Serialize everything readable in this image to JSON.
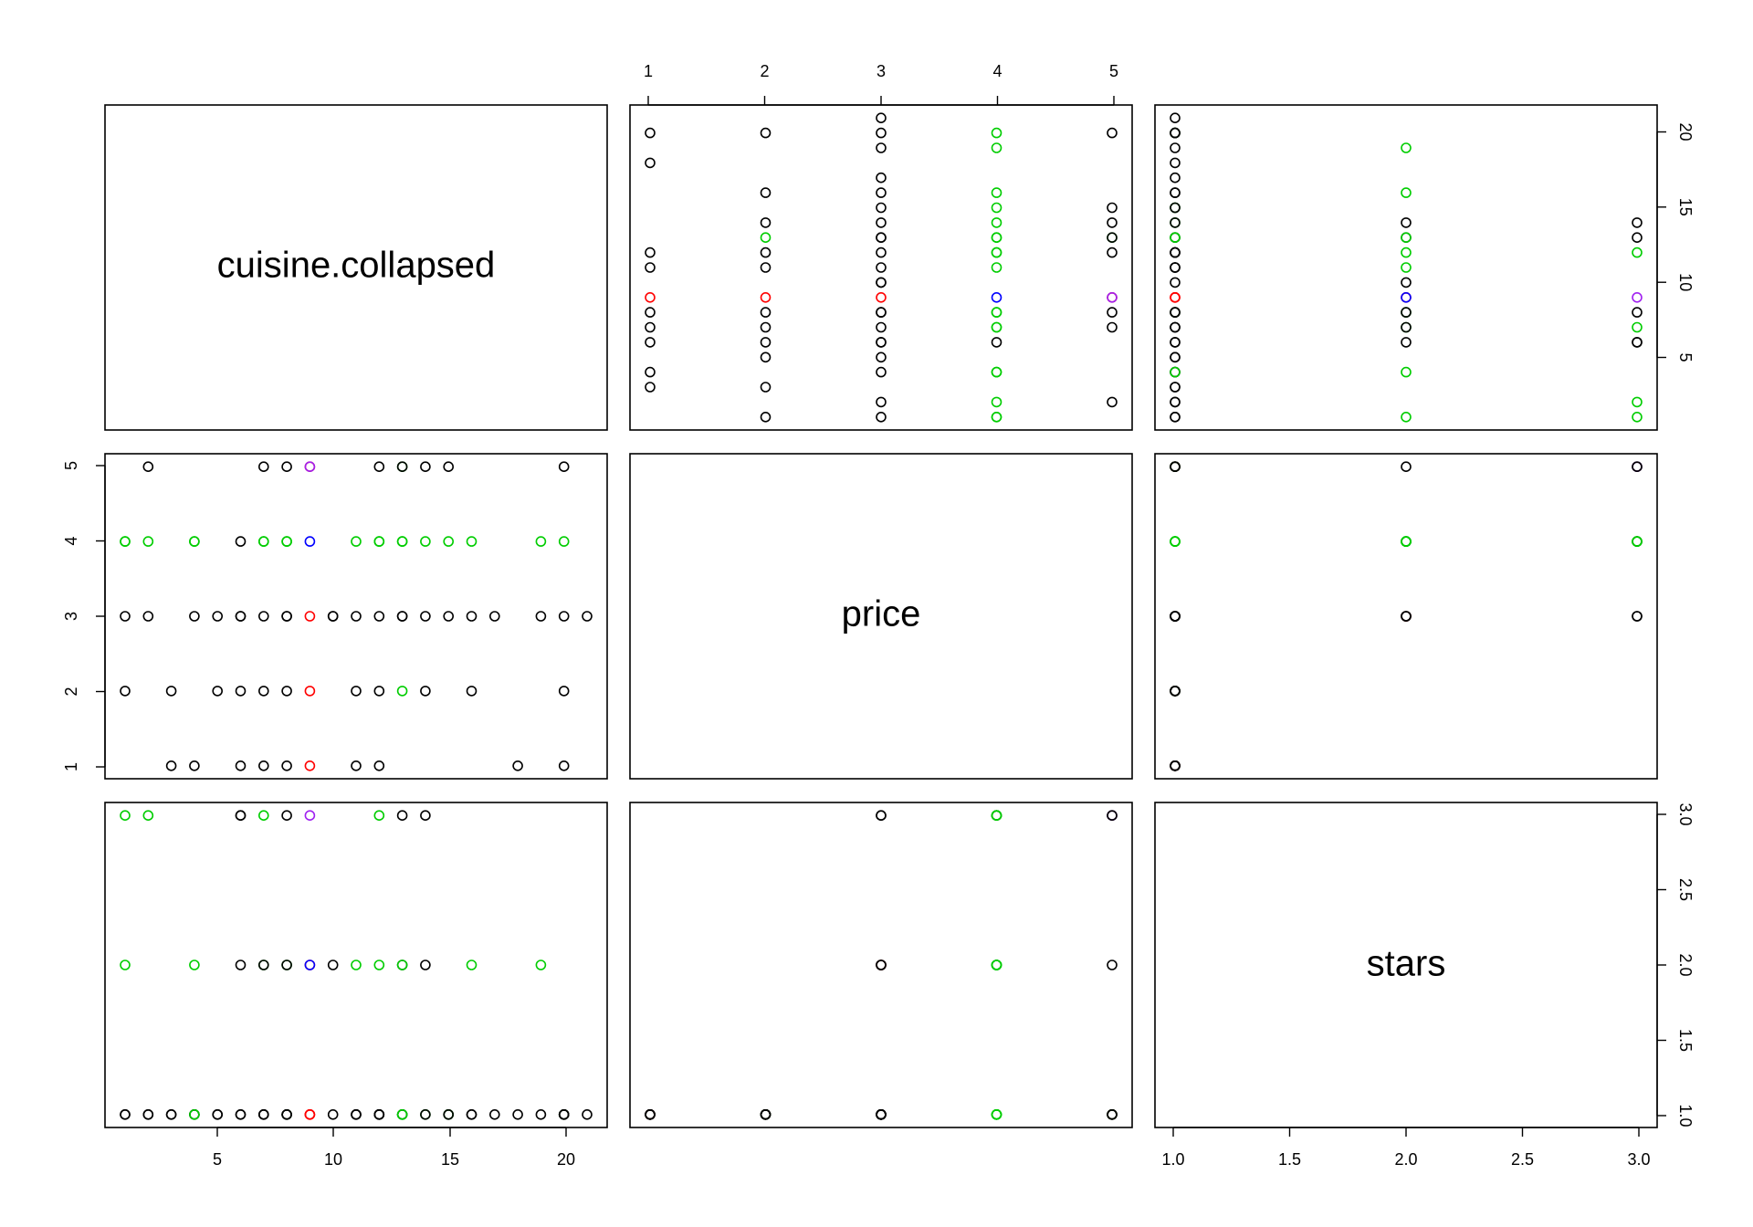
{
  "chart_data": {
    "type": "scatter",
    "layout": "pairs-matrix",
    "variables": [
      {
        "name": "cuisine.collapsed",
        "range": [
          1,
          21
        ],
        "ticks": [
          5,
          10,
          15,
          20
        ]
      },
      {
        "name": "price",
        "range": [
          1,
          5
        ],
        "ticks": [
          1,
          2,
          3,
          4,
          5
        ]
      },
      {
        "name": "stars",
        "range": [
          1,
          3
        ],
        "ticks": [
          1.0,
          1.5,
          2.0,
          2.5,
          3.0
        ]
      }
    ],
    "tick_labels": {
      "cuisine": [
        "5",
        "10",
        "15",
        "20"
      ],
      "price": [
        "1",
        "2",
        "3",
        "4",
        "5"
      ],
      "stars": [
        "1.0",
        "1.5",
        "2.0",
        "2.5",
        "3.0"
      ]
    },
    "colors": {
      "black": "#000000",
      "green": "#00cd00",
      "red": "#ff0000",
      "blue": "#0000ff",
      "purple": "#a020f0"
    },
    "points": [
      {
        "cuisine": 1,
        "price": 2,
        "stars": 1,
        "color": "black"
      },
      {
        "cuisine": 1,
        "price": 3,
        "stars": 1,
        "color": "black"
      },
      {
        "cuisine": 1,
        "price": 4,
        "stars": 2,
        "color": "green"
      },
      {
        "cuisine": 1,
        "price": 4,
        "stars": 3,
        "color": "green"
      },
      {
        "cuisine": 2,
        "price": 5,
        "stars": 1,
        "color": "black"
      },
      {
        "cuisine": 2,
        "price": 4,
        "stars": 3,
        "color": "green"
      },
      {
        "cuisine": 2,
        "price": 3,
        "stars": 1,
        "color": "black"
      },
      {
        "cuisine": 3,
        "price": 2,
        "stars": 1,
        "color": "black"
      },
      {
        "cuisine": 3,
        "price": 1,
        "stars": 1,
        "color": "black"
      },
      {
        "cuisine": 4,
        "price": 1,
        "stars": 1,
        "color": "black"
      },
      {
        "cuisine": 4,
        "price": 3,
        "stars": 1,
        "color": "black"
      },
      {
        "cuisine": 4,
        "price": 4,
        "stars": 1,
        "color": "green"
      },
      {
        "cuisine": 4,
        "price": 4,
        "stars": 2,
        "color": "green"
      },
      {
        "cuisine": 5,
        "price": 2,
        "stars": 1,
        "color": "black"
      },
      {
        "cuisine": 5,
        "price": 3,
        "stars": 1,
        "color": "black"
      },
      {
        "cuisine": 6,
        "price": 1,
        "stars": 1,
        "color": "black"
      },
      {
        "cuisine": 6,
        "price": 2,
        "stars": 1,
        "color": "black"
      },
      {
        "cuisine": 6,
        "price": 3,
        "stars": 2,
        "color": "black"
      },
      {
        "cuisine": 6,
        "price": 4,
        "stars": 3,
        "color": "black"
      },
      {
        "cuisine": 6,
        "price": 3,
        "stars": 3,
        "color": "black"
      },
      {
        "cuisine": 7,
        "price": 5,
        "stars": 1,
        "color": "black"
      },
      {
        "cuisine": 7,
        "price": 4,
        "stars": 3,
        "color": "green"
      },
      {
        "cuisine": 7,
        "price": 4,
        "stars": 2,
        "color": "green"
      },
      {
        "cuisine": 7,
        "price": 3,
        "stars": 2,
        "color": "black"
      },
      {
        "cuisine": 7,
        "price": 2,
        "stars": 1,
        "color": "black"
      },
      {
        "cuisine": 7,
        "price": 1,
        "stars": 1,
        "color": "black"
      },
      {
        "cuisine": 8,
        "price": 5,
        "stars": 3,
        "color": "black"
      },
      {
        "cuisine": 8,
        "price": 4,
        "stars": 1,
        "color": "green"
      },
      {
        "cuisine": 8,
        "price": 4,
        "stars": 2,
        "color": "green"
      },
      {
        "cuisine": 8,
        "price": 3,
        "stars": 1,
        "color": "black"
      },
      {
        "cuisine": 8,
        "price": 3,
        "stars": 2,
        "color": "black"
      },
      {
        "cuisine": 8,
        "price": 2,
        "stars": 1,
        "color": "black"
      },
      {
        "cuisine": 8,
        "price": 1,
        "stars": 1,
        "color": "black"
      },
      {
        "cuisine": 9,
        "price": 5,
        "stars": 1,
        "color": "red"
      },
      {
        "cuisine": 9,
        "price": 3,
        "stars": 2,
        "color": "red"
      },
      {
        "cuisine": 9,
        "price": 2,
        "stars": 1,
        "color": "red"
      },
      {
        "cuisine": 9,
        "price": 1,
        "stars": 1,
        "color": "red"
      },
      {
        "cuisine": 9,
        "price": 4,
        "stars": 2,
        "color": "blue"
      },
      {
        "cuisine": 9,
        "price": 5,
        "stars": 3,
        "color": "purple"
      },
      {
        "cuisine": 10,
        "price": 3,
        "stars": 1,
        "color": "black"
      },
      {
        "cuisine": 10,
        "price": 3,
        "stars": 2,
        "color": "black"
      },
      {
        "cuisine": 11,
        "price": 4,
        "stars": 2,
        "color": "green"
      },
      {
        "cuisine": 11,
        "price": 3,
        "stars": 1,
        "color": "black"
      },
      {
        "cuisine": 11,
        "price": 2,
        "stars": 1,
        "color": "black"
      },
      {
        "cuisine": 11,
        "price": 1,
        "stars": 1,
        "color": "black"
      },
      {
        "cuisine": 12,
        "price": 5,
        "stars": 1,
        "color": "black"
      },
      {
        "cuisine": 12,
        "price": 4,
        "stars": 2,
        "color": "green"
      },
      {
        "cuisine": 12,
        "price": 4,
        "stars": 3,
        "color": "green"
      },
      {
        "cuisine": 12,
        "price": 3,
        "stars": 1,
        "color": "black"
      },
      {
        "cuisine": 12,
        "price": 2,
        "stars": 1,
        "color": "black"
      },
      {
        "cuisine": 12,
        "price": 1,
        "stars": 1,
        "color": "black"
      },
      {
        "cuisine": 13,
        "price": 5,
        "stars": 1,
        "color": "green"
      },
      {
        "cuisine": 13,
        "price": 5,
        "stars": 2,
        "color": "black"
      },
      {
        "cuisine": 13,
        "price": 4,
        "stars": 1,
        "color": "green"
      },
      {
        "cuisine": 13,
        "price": 4,
        "stars": 2,
        "color": "green"
      },
      {
        "cuisine": 13,
        "price": 3,
        "stars": 1,
        "color": "black"
      },
      {
        "cuisine": 13,
        "price": 3,
        "stars": 3,
        "color": "black"
      },
      {
        "cuisine": 13,
        "price": 2,
        "stars": 1,
        "color": "green"
      },
      {
        "cuisine": 14,
        "price": 5,
        "stars": 3,
        "color": "black"
      },
      {
        "cuisine": 14,
        "price": 4,
        "stars": 1,
        "color": "green"
      },
      {
        "cuisine": 14,
        "price": 3,
        "stars": 2,
        "color": "black"
      },
      {
        "cuisine": 14,
        "price": 2,
        "stars": 1,
        "color": "black"
      },
      {
        "cuisine": 15,
        "price": 5,
        "stars": 1,
        "color": "black"
      },
      {
        "cuisine": 15,
        "price": 4,
        "stars": 1,
        "color": "green"
      },
      {
        "cuisine": 15,
        "price": 3,
        "stars": 1,
        "color": "black"
      },
      {
        "cuisine": 16,
        "price": 4,
        "stars": 2,
        "color": "green"
      },
      {
        "cuisine": 16,
        "price": 3,
        "stars": 1,
        "color": "black"
      },
      {
        "cuisine": 16,
        "price": 2,
        "stars": 1,
        "color": "black"
      },
      {
        "cuisine": 17,
        "price": 3,
        "stars": 1,
        "color": "black"
      },
      {
        "cuisine": 18,
        "price": 1,
        "stars": 1,
        "color": "black"
      },
      {
        "cuisine": 19,
        "price": 4,
        "stars": 2,
        "color": "green"
      },
      {
        "cuisine": 19,
        "price": 3,
        "stars": 1,
        "color": "black"
      },
      {
        "cuisine": 20,
        "price": 5,
        "stars": 1,
        "color": "black"
      },
      {
        "cuisine": 20,
        "price": 4,
        "stars": 1,
        "color": "green"
      },
      {
        "cuisine": 20,
        "price": 3,
        "stars": 1,
        "color": "black"
      },
      {
        "cuisine": 20,
        "price": 2,
        "stars": 1,
        "color": "black"
      },
      {
        "cuisine": 20,
        "price": 1,
        "stars": 1,
        "color": "black"
      },
      {
        "cuisine": 21,
        "price": 3,
        "stars": 1,
        "color": "black"
      }
    ]
  }
}
